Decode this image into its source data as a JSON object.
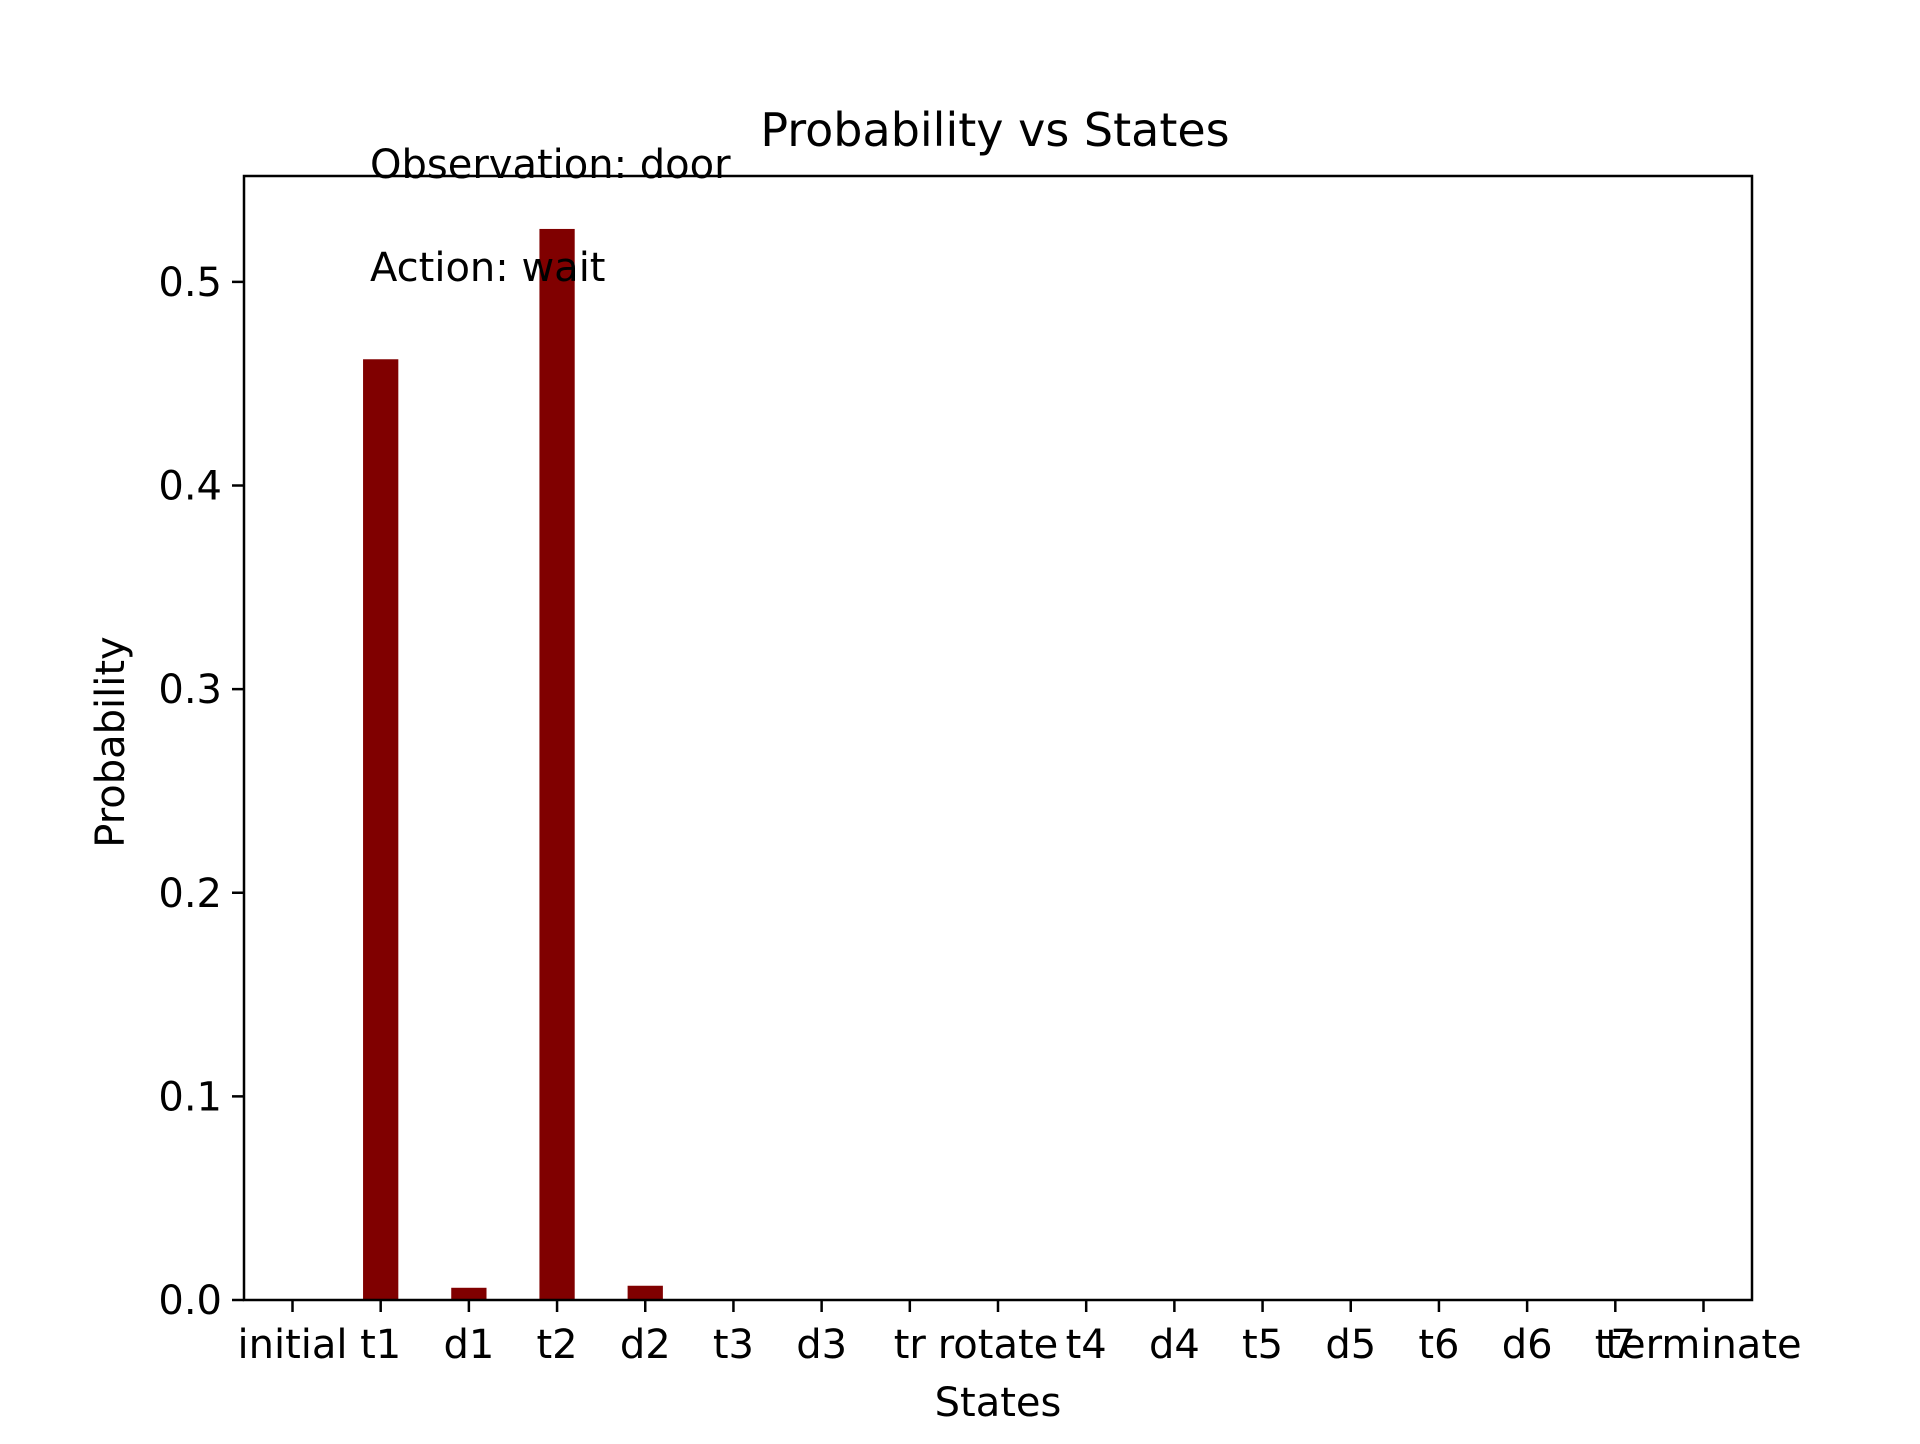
{
  "chart_data": {
    "type": "bar",
    "title": "Probability vs States",
    "xlabel": "States",
    "ylabel": "Probability",
    "annotations": [
      "Observation: door",
      "Action: wait"
    ],
    "categories": [
      "initial",
      "t1",
      "d1",
      "t2",
      "d2",
      "t3",
      "d3",
      "tr",
      "rotate",
      "t4",
      "d4",
      "t5",
      "d5",
      "t6",
      "d6",
      "t7",
      "terminate"
    ],
    "values": [
      0.0,
      0.462,
      0.006,
      0.526,
      0.007,
      0.0,
      0.0,
      0.0,
      0.0,
      0.0,
      0.0,
      0.0,
      0.0,
      0.0,
      0.0,
      0.0,
      0.0
    ],
    "ylim": [
      0,
      0.552
    ],
    "yticks": [
      0.0,
      0.1,
      0.2,
      0.3,
      0.4,
      0.5
    ],
    "ytick_labels": [
      "0.0",
      "0.1",
      "0.2",
      "0.3",
      "0.4",
      "0.5"
    ],
    "bar_color": "#800000",
    "grid": false,
    "legend": "none"
  }
}
